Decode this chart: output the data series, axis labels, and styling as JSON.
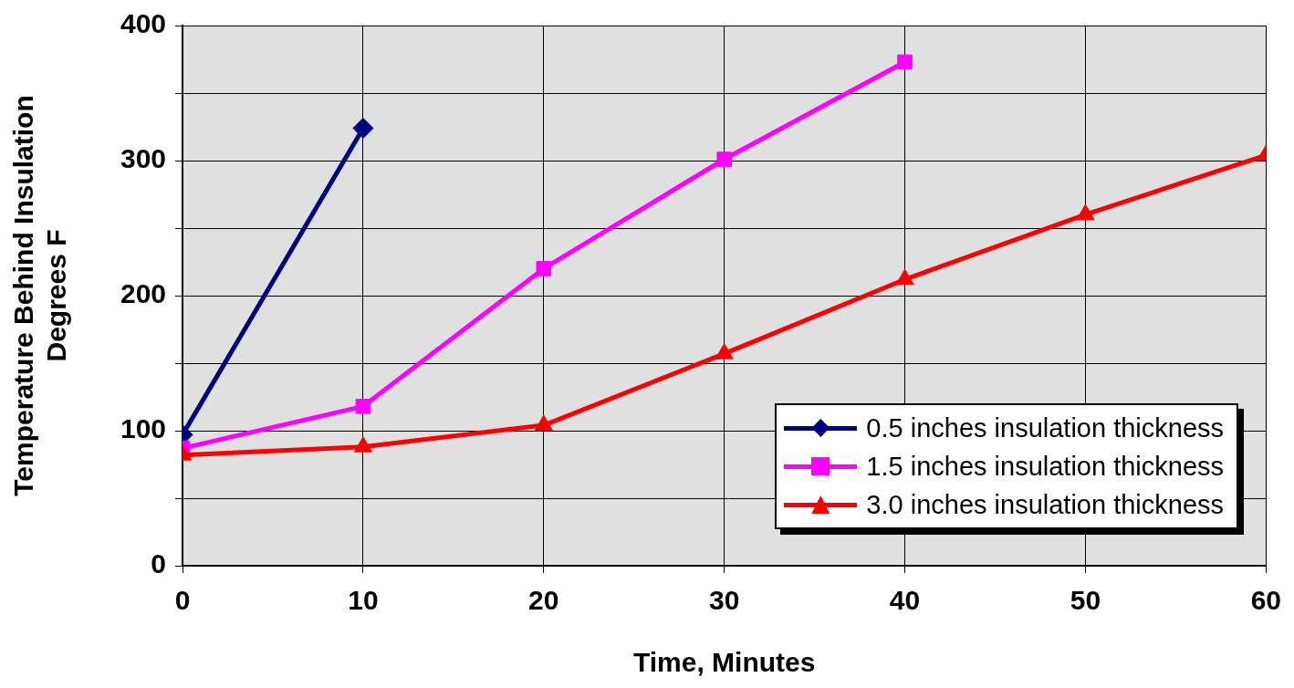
{
  "chart_data": {
    "type": "line",
    "xlabel": "Time, Minutes",
    "ylabel": "Temperature Behind Insulation\nDegrees F",
    "xlim": [
      0,
      60
    ],
    "xticks": [
      0,
      10,
      20,
      30,
      40,
      50,
      60
    ],
    "ylim": [
      0,
      400
    ],
    "yticks": [
      0,
      {
        "value": 50,
        "label": null
      },
      100,
      {
        "value": 150,
        "label": null
      },
      200,
      {
        "value": 250,
        "label": null
      },
      300,
      {
        "value": 350,
        "label": null
      },
      400
    ],
    "grid": true,
    "legend": "bottom right",
    "series": [
      {
        "name": "0.5 inches insulation thickness",
        "color": "#000080",
        "marker": "diamond",
        "x": [
          0,
          10
        ],
        "values": [
          97,
          324
        ]
      },
      {
        "name": "1.5 inches insulation thickness",
        "color": "#ff00ff",
        "marker": "square",
        "x": [
          0,
          10,
          20,
          30,
          40
        ],
        "values": [
          87,
          118,
          220,
          301,
          373
        ]
      },
      {
        "name": "3.0 inches insulation thickness",
        "color": "#ff0000",
        "marker": "triangle",
        "x": [
          0,
          10,
          20,
          30,
          40,
          50,
          60
        ],
        "values": [
          82,
          88,
          104,
          157,
          212,
          260,
          304
        ]
      }
    ]
  }
}
